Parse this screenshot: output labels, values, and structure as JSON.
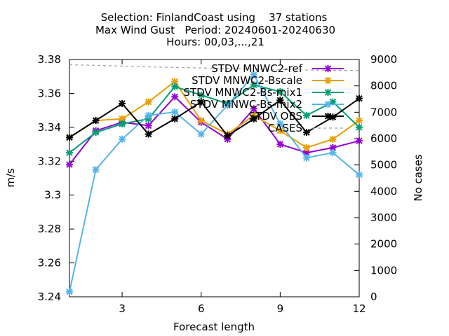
{
  "chart_data": {
    "type": "line",
    "title_lines": [
      "Selection: FinlandCoast using    37 stations",
      "Max Wind Gust   Period: 20240601-20240630",
      "Hours: 00,03,...,21"
    ],
    "xlabel": "Forecast length",
    "ylabel": "m/s",
    "y2label": "No cases",
    "xlim": [
      1,
      12
    ],
    "ylim": [
      3.24,
      3.38
    ],
    "y2lim": [
      0,
      9000
    ],
    "x_ticks": [
      3,
      6,
      9,
      12
    ],
    "y_ticks": [
      3.24,
      3.26,
      3.28,
      3.3,
      3.32,
      3.34,
      3.36,
      3.38
    ],
    "y_tick_labels": [
      "3.24",
      "3.26",
      "3.28",
      "3.3",
      "3.32",
      "3.34",
      "3.36",
      "3.38"
    ],
    "y2_ticks": [
      0,
      1000,
      2000,
      3000,
      4000,
      5000,
      6000,
      7000,
      8000,
      9000
    ],
    "grid": false,
    "legend_position": "top-right",
    "x": [
      1,
      2,
      3,
      4,
      5,
      6,
      7,
      8,
      9,
      10,
      11,
      12
    ],
    "series": [
      {
        "name": "STDV MNWC2-ref",
        "color": "#9400d3",
        "axis": "y",
        "values": [
          3.318,
          3.338,
          3.343,
          3.341,
          3.358,
          3.343,
          3.333,
          3.351,
          3.33,
          3.325,
          3.328,
          3.332
        ]
      },
      {
        "name": "STDV MNWC2-Bscale",
        "color": "#e69f00",
        "axis": "y",
        "values": [
          3.334,
          3.344,
          3.345,
          3.355,
          3.367,
          3.344,
          3.336,
          3.347,
          3.338,
          3.328,
          3.333,
          3.344
        ]
      },
      {
        "name": "STDV MNWC2-Bs-mix1",
        "color": "#009e73",
        "axis": "y",
        "values": [
          3.325,
          3.337,
          3.342,
          3.345,
          3.364,
          3.359,
          3.354,
          3.365,
          3.361,
          3.347,
          3.355,
          3.34
        ]
      },
      {
        "name": "STDV MNWC-Bs-mix2",
        "color": "#56b4e9",
        "axis": "y",
        "values": [
          3.243,
          3.315,
          3.333,
          3.347,
          3.349,
          3.336,
          3.353,
          3.371,
          3.342,
          3.322,
          3.325,
          3.312
        ]
      },
      {
        "name": "STDV OBS",
        "color": "#000000",
        "axis": "y",
        "values": [
          3.334,
          3.344,
          3.354,
          3.336,
          3.345,
          3.355,
          3.335,
          3.345,
          3.356,
          3.337,
          3.346,
          3.357
        ]
      },
      {
        "name": "CASES",
        "color": "#a0a0a0",
        "axis": "y2",
        "dashed": true,
        "values": [
          8800,
          8780,
          8750,
          8720,
          8700,
          8680,
          8660,
          8640,
          8620,
          8600,
          8590,
          8580
        ]
      }
    ]
  }
}
